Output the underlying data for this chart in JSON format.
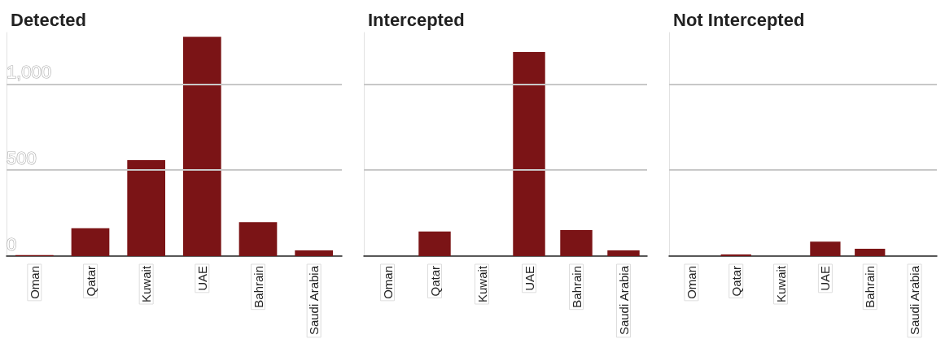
{
  "chart_data": [
    {
      "type": "bar",
      "title": "Detected",
      "categories": [
        "Oman",
        "Qatar",
        "Kuwait",
        "UAE",
        "Bahrain",
        "Saudi Arabia"
      ],
      "values": [
        6,
        162,
        558,
        1275,
        197,
        33
      ],
      "color": "#7b1416",
      "ylim": [
        0,
        1300
      ],
      "yticks": [
        0,
        500,
        {
          "value": 1000,
          "label": "1,000"
        }
      ],
      "grid": "y"
    },
    {
      "type": "bar",
      "title": "Intercepted",
      "categories": [
        "Oman",
        "Qatar",
        "Kuwait",
        "UAE",
        "Bahrain",
        "Saudi Arabia"
      ],
      "values": [
        0,
        143,
        0,
        1187,
        151,
        33
      ],
      "color": "#7b1416",
      "ylim": [
        0,
        1300
      ],
      "yticks": [
        0,
        500,
        1000
      ],
      "grid": "y",
      "tick_labels": "x"
    },
    {
      "type": "bar",
      "title": "Not Intercepted",
      "categories": [
        "Oman",
        "Qatar",
        "Kuwait",
        "UAE",
        "Bahrain",
        "Saudi Arabia"
      ],
      "values": [
        0,
        9,
        0,
        84,
        42,
        0
      ],
      "color": "#7b1416",
      "ylim": [
        0,
        1300
      ],
      "yticks": [
        0,
        500,
        1000
      ],
      "grid": "y",
      "tick_labels": "x"
    }
  ]
}
